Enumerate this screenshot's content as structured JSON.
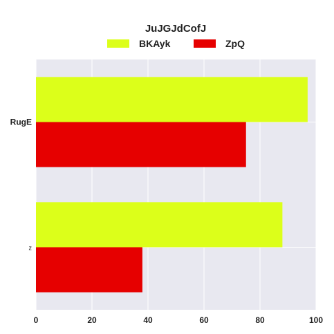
{
  "chart_data": {
    "type": "bar",
    "orientation": "horizontal",
    "title": "JuJGJdCofJ",
    "categories": [
      "RugE",
      "z"
    ],
    "series": [
      {
        "name": "BKAyk",
        "values": [
          97,
          88
        ],
        "color": "#dcff1a"
      },
      {
        "name": "ZpQ",
        "values": [
          75,
          38
        ],
        "color": "#e60000"
      }
    ],
    "xlim": [
      0,
      100
    ],
    "xticks": [
      "0",
      "20",
      "40",
      "60",
      "80",
      "100"
    ],
    "xlabel": "",
    "ylabel": "",
    "grid": true,
    "legend": "top-center",
    "background": "#e8e8f0",
    "grid_color": "#ffffff"
  }
}
